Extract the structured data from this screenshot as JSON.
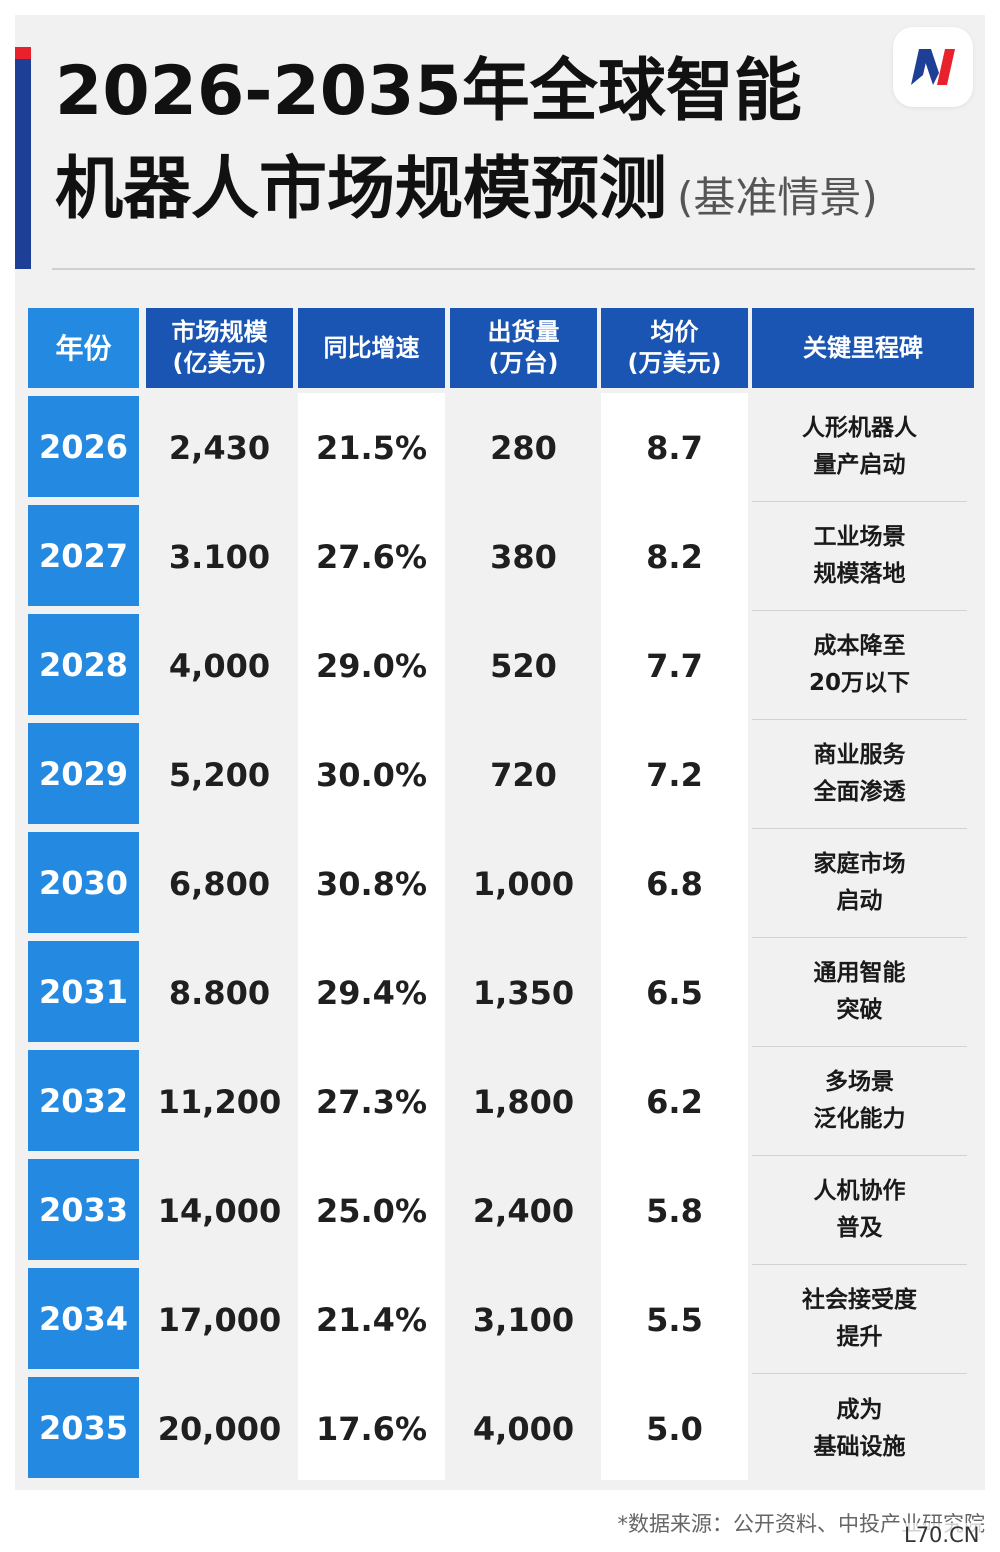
{
  "title": {
    "line1": "2026-2035年全球智能",
    "line2": "机器人市场规模预测",
    "subtitle": "(基准情景)"
  },
  "colors": {
    "header_blue": "#1b55b3",
    "year_blue": "#2489e0",
    "accent_red": "#e8212c",
    "logo_red": "#e8212c",
    "logo_blue": "#1d3f95"
  },
  "logo_icon": "brand-logo-icon",
  "chart_data": {
    "type": "table",
    "columns": [
      {
        "line1": "年份",
        "line2": ""
      },
      {
        "line1": "市场规模",
        "line2": "(亿美元)"
      },
      {
        "line1": "同比增速",
        "line2": ""
      },
      {
        "line1": "出货量",
        "line2": "(万台)"
      },
      {
        "line1": "均价",
        "line2": "(万美元)"
      },
      {
        "line1": "关键里程碑",
        "line2": ""
      }
    ],
    "rows": [
      {
        "year": "2026",
        "market": "2,430",
        "growth": "21.5%",
        "shipments": "280",
        "price": "8.7",
        "milestone1": "人形机器人",
        "milestone2": "量产启动"
      },
      {
        "year": "2027",
        "market": "3.100",
        "growth": "27.6%",
        "shipments": "380",
        "price": "8.2",
        "milestone1": "工业场景",
        "milestone2": "规模落地"
      },
      {
        "year": "2028",
        "market": "4,000",
        "growth": "29.0%",
        "shipments": "520",
        "price": "7.7",
        "milestone1": "成本降至",
        "milestone2": "20万以下"
      },
      {
        "year": "2029",
        "market": "5,200",
        "growth": "30.0%",
        "shipments": "720",
        "price": "7.2",
        "milestone1": "商业服务",
        "milestone2": "全面渗透"
      },
      {
        "year": "2030",
        "market": "6,800",
        "growth": "30.8%",
        "shipments": "1,000",
        "price": "6.8",
        "milestone1": "家庭市场",
        "milestone2": "启动"
      },
      {
        "year": "2031",
        "market": "8.800",
        "growth": "29.4%",
        "shipments": "1,350",
        "price": "6.5",
        "milestone1": "通用智能",
        "milestone2": "突破"
      },
      {
        "year": "2032",
        "market": "11,200",
        "growth": "27.3%",
        "shipments": "1,800",
        "price": "6.2",
        "milestone1": "多场景",
        "milestone2": "泛化能力"
      },
      {
        "year": "2033",
        "market": "14,000",
        "growth": "25.0%",
        "shipments": "2,400",
        "price": "5.8",
        "milestone1": "人机协作",
        "milestone2": "普及"
      },
      {
        "year": "2034",
        "market": "17,000",
        "growth": "21.4%",
        "shipments": "3,100",
        "price": "5.5",
        "milestone1": "社会接受度",
        "milestone2": "提升"
      },
      {
        "year": "2035",
        "market": "20,000",
        "growth": "17.6%",
        "shipments": "4,000",
        "price": "5.0",
        "milestone1": "成为",
        "milestone2": "基础设施"
      }
    ]
  },
  "source": "*数据来源：公开资料、中投产业研究院",
  "watermark": "L70.CN"
}
